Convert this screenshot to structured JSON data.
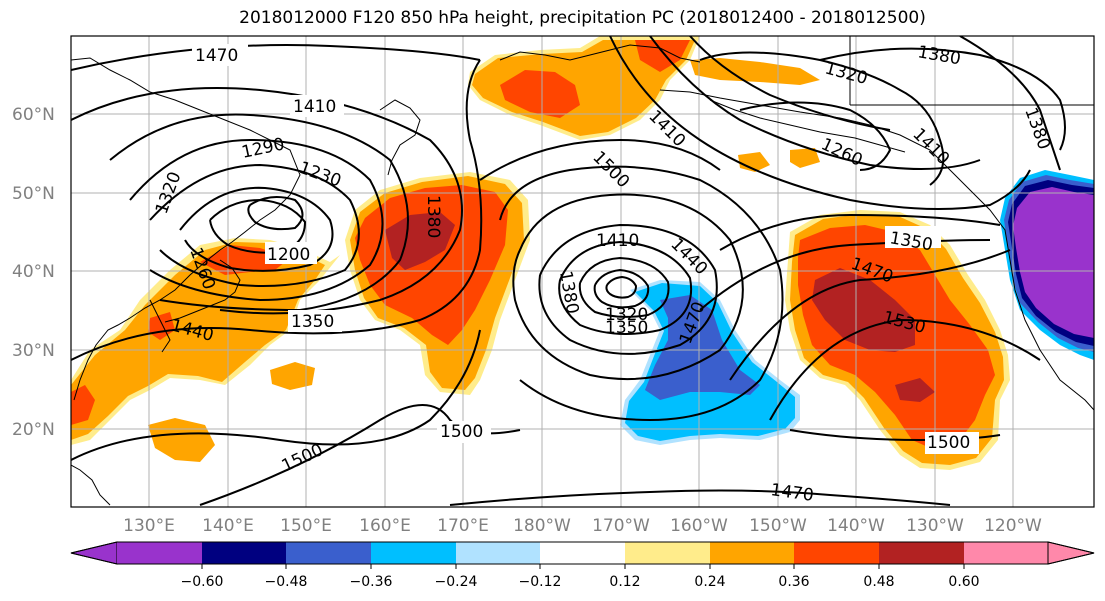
{
  "title": "2018012000 F120 850 hPa height, precipitation PC (2018012400 - 2018012500)",
  "lat_labels": [
    "60°N",
    "50°N",
    "40°N",
    "30°N",
    "20°N"
  ],
  "lon_labels": [
    "130°E",
    "140°E",
    "150°E",
    "160°E",
    "170°E",
    "180°W",
    "170°W",
    "160°W",
    "150°W",
    "140°W",
    "130°W",
    "120°W"
  ],
  "contour_labels": [
    "1470",
    "1410",
    "1290",
    "1230",
    "1320",
    "1260",
    "1200",
    "1380",
    "1350",
    "1440",
    "1500",
    "1410",
    "1440",
    "1380",
    "1320",
    "1350",
    "1470",
    "1500",
    "1410",
    "1320",
    "1260",
    "1380",
    "1350",
    "1470",
    "1530",
    "1500",
    "1470",
    "1380",
    "1500",
    "1410"
  ],
  "colorbar": {
    "ticks": [
      "−0.60",
      "−0.48",
      "−0.36",
      "−0.24",
      "−0.12",
      "0.12",
      "0.24",
      "0.36",
      "0.48",
      "0.60"
    ],
    "colors": [
      "#9933cc",
      "#000080",
      "#3a5fcd",
      "#00bfff",
      "#b0e2ff",
      "#ffffff",
      "#ffec8b",
      "#ffa500",
      "#ff4500",
      "#b22222",
      "#ff88aa"
    ]
  },
  "colors": {
    "orange": "#ffa500",
    "red": "#ff4500",
    "darkred": "#b22222",
    "yellow": "#ffec8b",
    "skyblue": "#00bfff",
    "royalblue": "#3a5fcd",
    "navy": "#000080",
    "purple": "#9933cc"
  }
}
